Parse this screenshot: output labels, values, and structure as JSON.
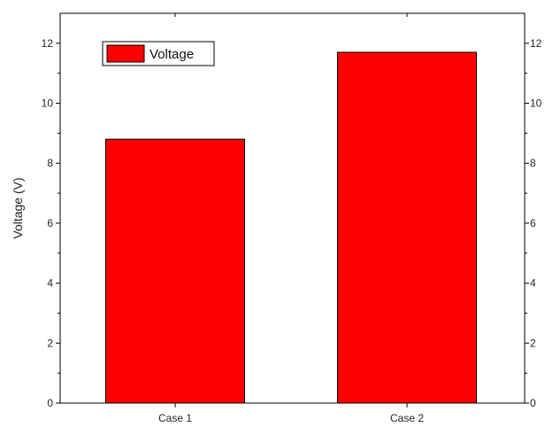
{
  "chart_data": {
    "type": "bar",
    "title": "",
    "xlabel": "",
    "ylabel": "Voltage (V)",
    "categories": [
      "Case 1",
      "Case 2"
    ],
    "series": [
      {
        "name": "Voltage",
        "values": [
          8.8,
          11.7
        ],
        "color": "#ff0000"
      }
    ],
    "ylim": [
      0,
      13
    ],
    "yticks": [
      0,
      2,
      4,
      6,
      8,
      10,
      12
    ],
    "right_axis_ticks": [
      0,
      2,
      4,
      6,
      8,
      10,
      12
    ],
    "grid": false,
    "legend_position": "top-left"
  }
}
